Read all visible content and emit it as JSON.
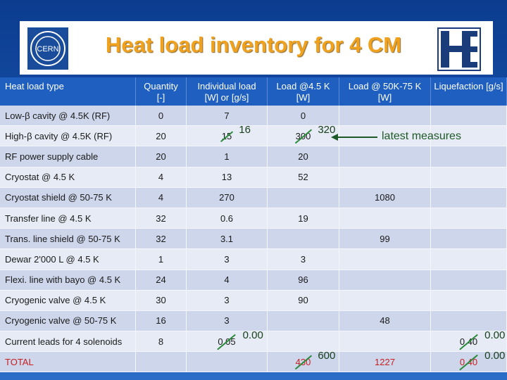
{
  "header": {
    "title": "Heat load inventory for 4 CM",
    "logo_text": "CERN"
  },
  "table": {
    "columns": [
      "Heat load type",
      "Quantity [-]",
      "Individual load [W] or [g/s]",
      "Load @4.5 K [W]",
      "Load @ 50K-75 K [W]",
      "Liquefaction [g/s]"
    ],
    "rows": [
      [
        "Low-β cavity @ 4.5K (RF)",
        "0",
        "7",
        "0",
        null,
        null
      ],
      [
        "High-β cavity @ 4.5K (RF)",
        "20",
        {
          "old": "15",
          "new": "16"
        },
        {
          "old": "300",
          "new": "320"
        },
        null,
        null
      ],
      [
        "RF power supply cable",
        "20",
        "1",
        "20",
        null,
        null
      ],
      [
        "Cryostat @ 4.5 K",
        "4",
        "13",
        "52",
        null,
        null
      ],
      [
        "Cryostat shield @ 50-75 K",
        "4",
        "270",
        null,
        "1080",
        null
      ],
      [
        "Transfer line @ 4.5 K",
        "32",
        "0.6",
        "19",
        null,
        null
      ],
      [
        "Trans. line shield @ 50-75 K",
        "32",
        "3.1",
        null,
        "99",
        null
      ],
      [
        "Dewar 2'000 L @ 4.5 K",
        "1",
        "3",
        "3",
        null,
        null
      ],
      [
        "Flexi. line with bayo @ 4.5 K",
        "24",
        "4",
        "96",
        null,
        null
      ],
      [
        "Cryogenic valve @ 4.5 K",
        "30",
        "3",
        "90",
        null,
        null
      ],
      [
        "Cryogenic valve @ 50-75 K",
        "16",
        "3",
        null,
        "48",
        null
      ],
      [
        "Current leads for 4 solenoids",
        "8",
        {
          "old": "0.05",
          "new": "0.00"
        },
        null,
        null,
        {
          "old": "0.40",
          "new": "0.00"
        }
      ],
      [
        "TOTAL",
        null,
        null,
        {
          "old": "430",
          "new": "600"
        },
        "1227",
        {
          "old": "0.40",
          "new": "0.00"
        }
      ]
    ]
  },
  "annotation": "latest measures"
}
